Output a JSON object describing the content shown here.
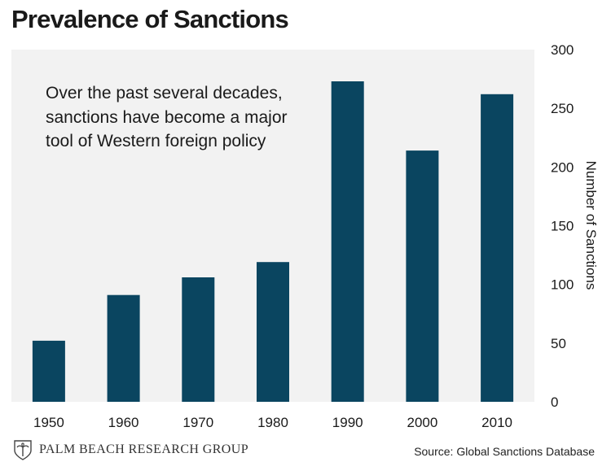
{
  "title": "Prevalence of Sanctions",
  "annotation": [
    "Over the past several decades,",
    "sanctions have become a major",
    "tool of Western foreign policy"
  ],
  "source": "Source: Global Sanctions Database",
  "logo": {
    "text": "PALM BEACH RESEARCH GROUP",
    "icon": "palm-tree-crest-icon"
  },
  "colors": {
    "bar": "#0a4560",
    "plot_background": "#f2f2f2"
  },
  "chart_data": {
    "type": "bar",
    "categories": [
      "1950",
      "1960",
      "1970",
      "1980",
      "1990",
      "2000",
      "2010"
    ],
    "values": [
      52,
      91,
      106,
      119,
      273,
      214,
      262
    ],
    "title": "Prevalence of Sanctions",
    "xlabel": "",
    "ylabel": "Number of Sanctions",
    "ylim": [
      0,
      300
    ],
    "yticks": [
      0,
      50,
      100,
      150,
      200,
      250,
      300
    ],
    "y_axis_side": "right",
    "grid": false,
    "legend": "none"
  }
}
